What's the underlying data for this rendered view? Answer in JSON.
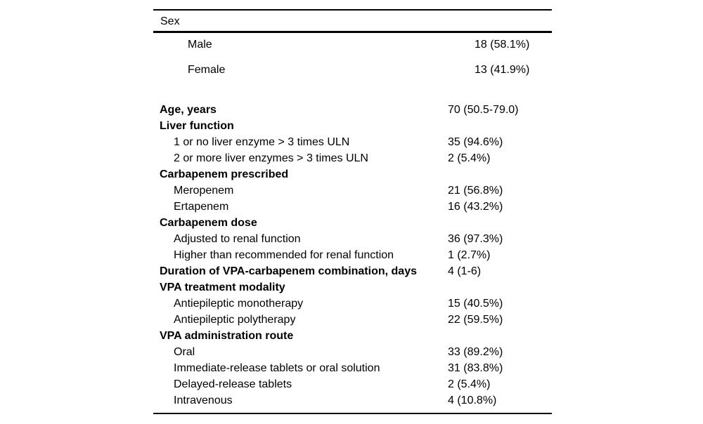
{
  "page": {
    "background_color": "#ffffff",
    "text_color": "#000000",
    "rule_color": "#000000"
  },
  "table": {
    "top_section": {
      "header": "Sex",
      "rows": [
        {
          "label": "Male",
          "value": "18 (58.1%)"
        },
        {
          "label": "Female",
          "value": "13 (41.9%)"
        }
      ]
    },
    "body_rows": [
      {
        "label": "Age, years",
        "value": "70 (50.5-79.0)",
        "bold": true,
        "indent": 0
      },
      {
        "label": "Liver function",
        "value": "",
        "bold": true,
        "indent": 0
      },
      {
        "label": "1 or no liver enzyme > 3 times ULN",
        "value": "35 (94.6%)",
        "bold": false,
        "indent": 1
      },
      {
        "label": "2 or more liver enzymes > 3 times ULN",
        "value": "2 (5.4%)",
        "bold": false,
        "indent": 1
      },
      {
        "label": "Carbapenem prescribed",
        "value": "",
        "bold": true,
        "indent": 0
      },
      {
        "label": "Meropenem",
        "value": "21 (56.8%)",
        "bold": false,
        "indent": 1
      },
      {
        "label": "Ertapenem",
        "value": "16 (43.2%)",
        "bold": false,
        "indent": 1
      },
      {
        "label": "Carbapenem dose",
        "value": "",
        "bold": true,
        "indent": 0
      },
      {
        "label": "Adjusted to renal function",
        "value": "36 (97.3%)",
        "bold": false,
        "indent": 1
      },
      {
        "label": "Higher than recommended for renal function",
        "value": "1 (2.7%)",
        "bold": false,
        "indent": 1
      },
      {
        "label": "Duration of VPA-carbapenem combination, days",
        "value": "4 (1-6)",
        "bold": true,
        "indent": 0
      },
      {
        "label": "VPA treatment modality",
        "value": "",
        "bold": true,
        "indent": 0
      },
      {
        "label": "Antiepileptic monotherapy",
        "value": "15 (40.5%)",
        "bold": false,
        "indent": 1
      },
      {
        "label": "Antiepileptic polytherapy",
        "value": "22 (59.5%)",
        "bold": false,
        "indent": 1
      },
      {
        "label": "VPA administration route",
        "value": "",
        "bold": true,
        "indent": 0
      },
      {
        "label": "Oral",
        "value": "33 (89.2%)",
        "bold": false,
        "indent": 1
      },
      {
        "label": "Immediate-release tablets or oral solution",
        "value": "31 (83.8%)",
        "bold": false,
        "indent": 1
      },
      {
        "label": "Delayed-release tablets",
        "value": "2 (5.4%)",
        "bold": false,
        "indent": 1
      },
      {
        "label": "Intravenous",
        "value": "4 (10.8%)",
        "bold": false,
        "indent": 1
      }
    ]
  }
}
